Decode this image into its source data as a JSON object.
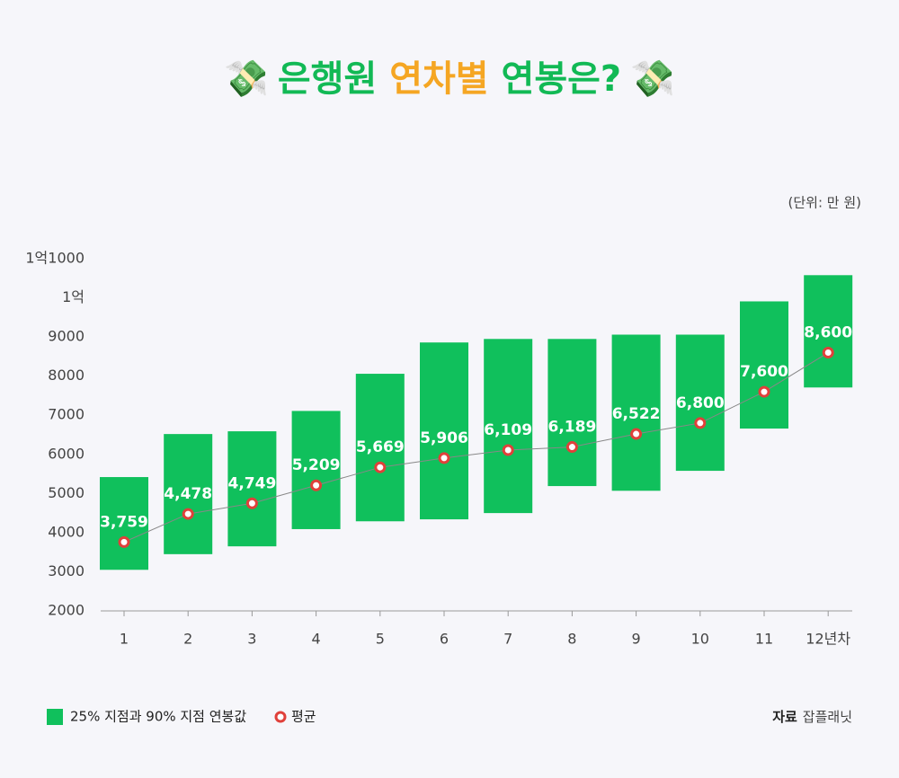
{
  "chart_data": {
    "type": "bar",
    "title": {
      "icon": "💸",
      "prefix": "은행원 ",
      "highlight": "연차별",
      "suffix": " 연봉은?",
      "color": "#12b955",
      "highlight_color": "#f5a623"
    },
    "unit_note": "(단위: 만 원)",
    "source": {
      "label": "자료",
      "text": "잡플래닛"
    },
    "categories": [
      "1",
      "2",
      "3",
      "4",
      "5",
      "6",
      "7",
      "8",
      "9",
      "10",
      "11",
      "12년차"
    ],
    "series": [
      {
        "name": "25% 지점과 90% 지점 연봉값",
        "color": "#10c05c",
        "low": [
          3050,
          3450,
          3650,
          4090,
          4290,
          4340,
          4500,
          5190,
          5070,
          5580,
          6660,
          7710
        ],
        "high": [
          5420,
          6520,
          6590,
          7110,
          8060,
          8860,
          8950,
          8950,
          9060,
          9060,
          9910,
          10580
        ]
      },
      {
        "name": "평균",
        "color": "#e0403a",
        "line_color": "#888888",
        "values": [
          3759,
          4478,
          4749,
          5209,
          5669,
          5906,
          6109,
          6189,
          6522,
          6800,
          7600,
          8600
        ],
        "value_labels": [
          "3,759",
          "4,478",
          "4,749",
          "5,209",
          "5,669",
          "5,906",
          "6,109",
          "6,189",
          "6,522",
          "6,800",
          "7,600",
          "8,600"
        ]
      }
    ],
    "ylim": [
      2000,
      11000
    ],
    "yticks": [
      2000,
      3000,
      4000,
      5000,
      6000,
      7000,
      8000,
      9000,
      {
        "value": 10000,
        "label": "1억"
      },
      {
        "value": 11000,
        "label": "1억1000"
      }
    ],
    "grid": false
  }
}
